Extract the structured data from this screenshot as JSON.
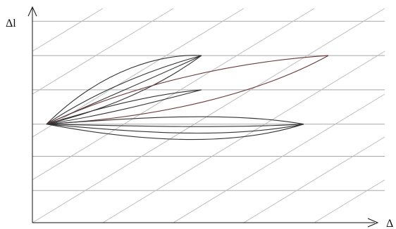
{
  "chart_data": {
    "type": "line",
    "title": "",
    "xlabel": "Δ",
    "ylabel": "Δl",
    "xlim": [
      0,
      10
    ],
    "ylim": [
      0,
      10
    ],
    "grid": "horizontal",
    "legend": "none",
    "horizontal_lines": [
      1.5,
      3.1,
      4.6,
      6.2,
      7.8,
      9.4
    ],
    "diagonal_lines": {
      "slope": 1.0,
      "intercepts": [
        -10,
        -8,
        -6,
        -4,
        -2,
        0,
        2,
        4,
        6,
        8
      ]
    },
    "origin_point": [
      0.4,
      4.6
    ],
    "series": [
      {
        "kind": "lens",
        "target": [
          4.8,
          7.8
        ],
        "upper": [
          [
            0.4,
            4.6
          ],
          [
            2.0,
            7.2
          ],
          [
            3.7,
            7.9
          ],
          [
            4.8,
            7.8
          ]
        ],
        "lower": [
          [
            0.4,
            4.6
          ],
          [
            2.6,
            6.2
          ],
          [
            3.9,
            7.1
          ],
          [
            4.8,
            7.8
          ]
        ],
        "color": "#333333"
      },
      {
        "kind": "lens",
        "target": [
          4.8,
          7.8
        ],
        "upper": [
          [
            0.4,
            4.6
          ],
          [
            1.5,
            5.8
          ],
          [
            3.0,
            7.0
          ],
          [
            4.8,
            7.8
          ]
        ],
        "lower": [
          [
            0.4,
            4.6
          ],
          [
            2.4,
            5.4
          ],
          [
            3.8,
            6.6
          ],
          [
            4.8,
            7.8
          ]
        ],
        "color": "#333333"
      },
      {
        "kind": "lens",
        "target": [
          4.8,
          6.2
        ],
        "upper": [
          [
            0.4,
            4.6
          ],
          [
            2.0,
            5.4
          ],
          [
            3.4,
            6.0
          ],
          [
            4.8,
            6.2
          ]
        ],
        "lower": [
          [
            0.4,
            4.6
          ],
          [
            2.0,
            5.0
          ],
          [
            3.4,
            5.6
          ],
          [
            4.8,
            6.2
          ]
        ],
        "color": "#333333"
      },
      {
        "kind": "lens",
        "target": [
          8.4,
          7.8
        ],
        "upper": [
          [
            0.4,
            4.6
          ],
          [
            2.8,
            6.4
          ],
          [
            5.6,
            7.5
          ],
          [
            8.4,
            7.8
          ]
        ],
        "lower": [
          [
            0.4,
            4.6
          ],
          [
            3.6,
            4.9
          ],
          [
            6.4,
            6.0
          ],
          [
            8.4,
            7.8
          ]
        ],
        "color": "#6b3a3a"
      },
      {
        "kind": "lens",
        "target": [
          7.7,
          4.6
        ],
        "upper": [
          [
            0.4,
            4.6
          ],
          [
            3.0,
            4.9
          ],
          [
            5.6,
            5.2
          ],
          [
            7.7,
            4.6
          ]
        ],
        "lower": [
          [
            0.4,
            4.6
          ],
          [
            3.0,
            3.8
          ],
          [
            5.6,
            3.5
          ],
          [
            7.7,
            4.6
          ]
        ],
        "color": "#333333"
      },
      {
        "kind": "lens",
        "target": [
          7.7,
          4.6
        ],
        "upper": [
          [
            0.4,
            4.6
          ],
          [
            3.0,
            4.5
          ],
          [
            5.6,
            4.4
          ],
          [
            7.7,
            4.6
          ]
        ],
        "lower": [
          [
            0.4,
            4.6
          ],
          [
            3.0,
            4.2
          ],
          [
            5.6,
            3.9
          ],
          [
            7.7,
            4.6
          ]
        ],
        "color": "#333333"
      }
    ]
  }
}
